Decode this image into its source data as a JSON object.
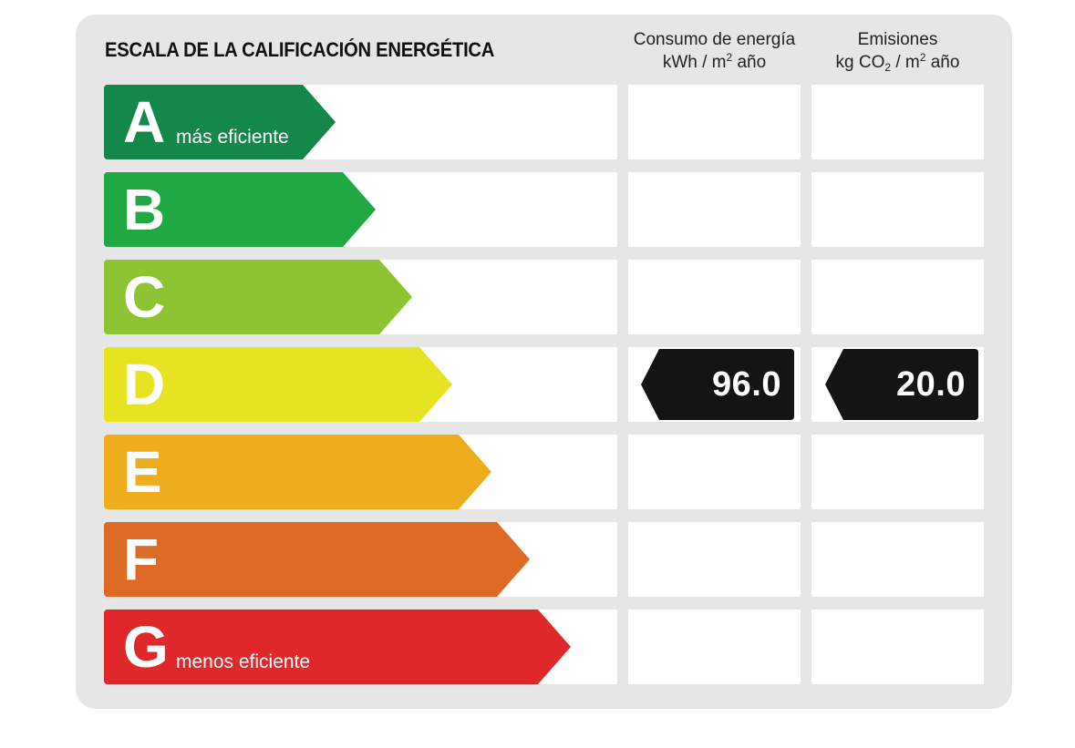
{
  "title": "ESCALA DE LA CALIFICACIÓN ENERGÉTICA",
  "columns": {
    "consumo": {
      "line1": "Consumo de energía",
      "unit_pre": "kWh / m",
      "unit_sup": "2",
      "unit_post": " año"
    },
    "emisiones": {
      "line1": "Emisiones",
      "unit_pre": "kg CO",
      "unit_sub": "2",
      "unit_mid": " / m",
      "unit_sup": "2",
      "unit_post": " año"
    }
  },
  "ratings": [
    {
      "letter": "A",
      "label": "más eficiente",
      "color": "#13884a"
    },
    {
      "letter": "B",
      "label": "",
      "color": "#1fa844"
    },
    {
      "letter": "C",
      "label": "",
      "color": "#8ec434"
    },
    {
      "letter": "D",
      "label": "",
      "color": "#e6e322"
    },
    {
      "letter": "E",
      "label": "",
      "color": "#eead1d"
    },
    {
      "letter": "F",
      "label": "",
      "color": "#dd6b25"
    },
    {
      "letter": "G",
      "label": "menos eficiente",
      "color": "#e0282a"
    }
  ],
  "current_rating": "D",
  "consumo_value": "96.0",
  "emisiones_value": "20.0",
  "marker_color": "#141414"
}
